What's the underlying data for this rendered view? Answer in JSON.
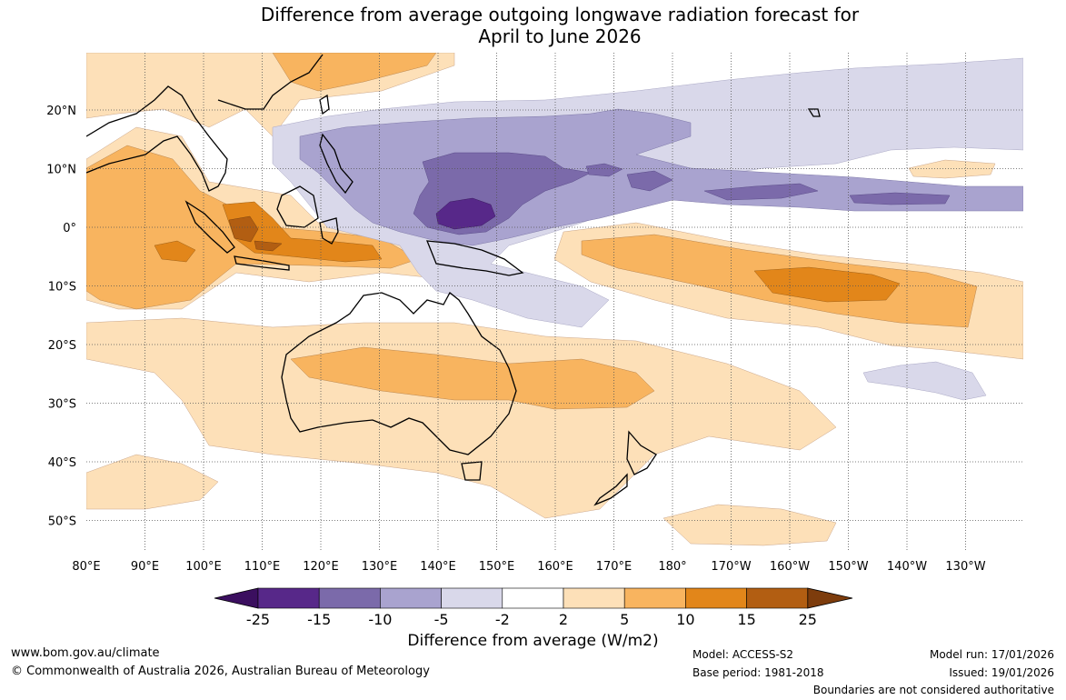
{
  "title": {
    "line1": "Difference from average outgoing longwave radiation forecast for",
    "line2": "April to June 2026"
  },
  "axes": {
    "longitudes": [
      "80°E",
      "90°E",
      "100°E",
      "110°E",
      "120°E",
      "130°E",
      "140°E",
      "150°E",
      "160°E",
      "170°E",
      "180°",
      "170°W",
      "160°W",
      "150°W",
      "140°W",
      "130°W"
    ],
    "latitudes": [
      "20°N",
      "10°N",
      "0°",
      "10°S",
      "20°S",
      "30°S",
      "40°S",
      "50°S"
    ]
  },
  "colorbar": {
    "ticks": [
      "-25",
      "-15",
      "-10",
      "-5",
      "-2",
      "2",
      "5",
      "10",
      "15",
      "25"
    ],
    "colors": [
      "#3b0f5f",
      "#572889",
      "#7b6aaa",
      "#a9a3cf",
      "#d9d8ea",
      "#ffffff",
      "#fde0b8",
      "#f8b45f",
      "#e2861a",
      "#b25e12",
      "#7d3c0c"
    ],
    "title": "Difference from average (W/m2)"
  },
  "footer": {
    "website": "www.bom.gov.au/climate",
    "copyright": "© Commonwealth of Australia 2026, Australian Bureau of Meteorology",
    "model": "Model: ACCESS-S2",
    "base_period": "Base period: 1981-2018",
    "model_run": "Model run: 17/01/2026",
    "issued": "Issued: 19/01/2026",
    "disclaimer": "Boundaries are not considered authoritative"
  }
}
